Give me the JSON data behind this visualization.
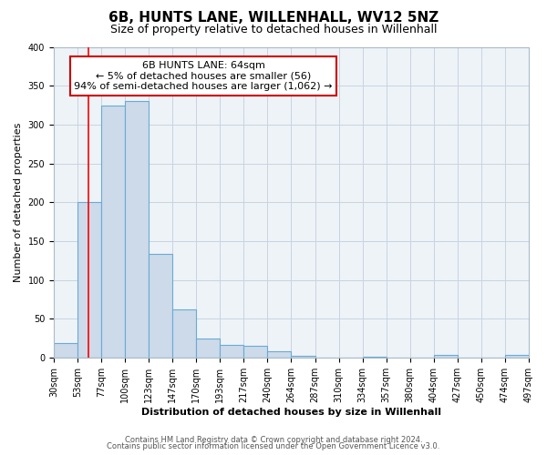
{
  "title": "6B, HUNTS LANE, WILLENHALL, WV12 5NZ",
  "subtitle": "Size of property relative to detached houses in Willenhall",
  "xlabel": "Distribution of detached houses by size in Willenhall",
  "ylabel": "Number of detached properties",
  "bar_values": [
    18,
    200,
    325,
    330,
    133,
    62,
    25,
    16,
    15,
    8,
    2,
    0,
    0,
    1,
    0,
    0,
    3,
    0,
    0,
    3
  ],
  "bin_labels": [
    "30sqm",
    "53sqm",
    "77sqm",
    "100sqm",
    "123sqm",
    "147sqm",
    "170sqm",
    "193sqm",
    "217sqm",
    "240sqm",
    "264sqm",
    "287sqm",
    "310sqm",
    "334sqm",
    "357sqm",
    "380sqm",
    "404sqm",
    "427sqm",
    "450sqm",
    "474sqm",
    "497sqm"
  ],
  "bar_color": "#ccdaea",
  "bar_edge_color": "#6aaad4",
  "bar_edge_width": 0.8,
  "ylim": [
    0,
    400
  ],
  "yticks": [
    0,
    50,
    100,
    150,
    200,
    250,
    300,
    350,
    400
  ],
  "annotation_text": "6B HUNTS LANE: 64sqm\n← 5% of detached houses are smaller (56)\n94% of semi-detached houses are larger (1,062) →",
  "annotation_box_color": "#ffffff",
  "annotation_box_edge": "#cc0000",
  "footer1": "Contains HM Land Registry data © Crown copyright and database right 2024.",
  "footer2": "Contains public sector information licensed under the Open Government Licence v3.0.",
  "bg_color": "#ffffff",
  "plot_bg_color": "#eef3f8",
  "grid_color": "#c8d4e0",
  "title_fontsize": 11,
  "subtitle_fontsize": 9,
  "axis_label_fontsize": 8,
  "tick_fontsize": 7,
  "annotation_fontsize": 8,
  "footer_fontsize": 6
}
